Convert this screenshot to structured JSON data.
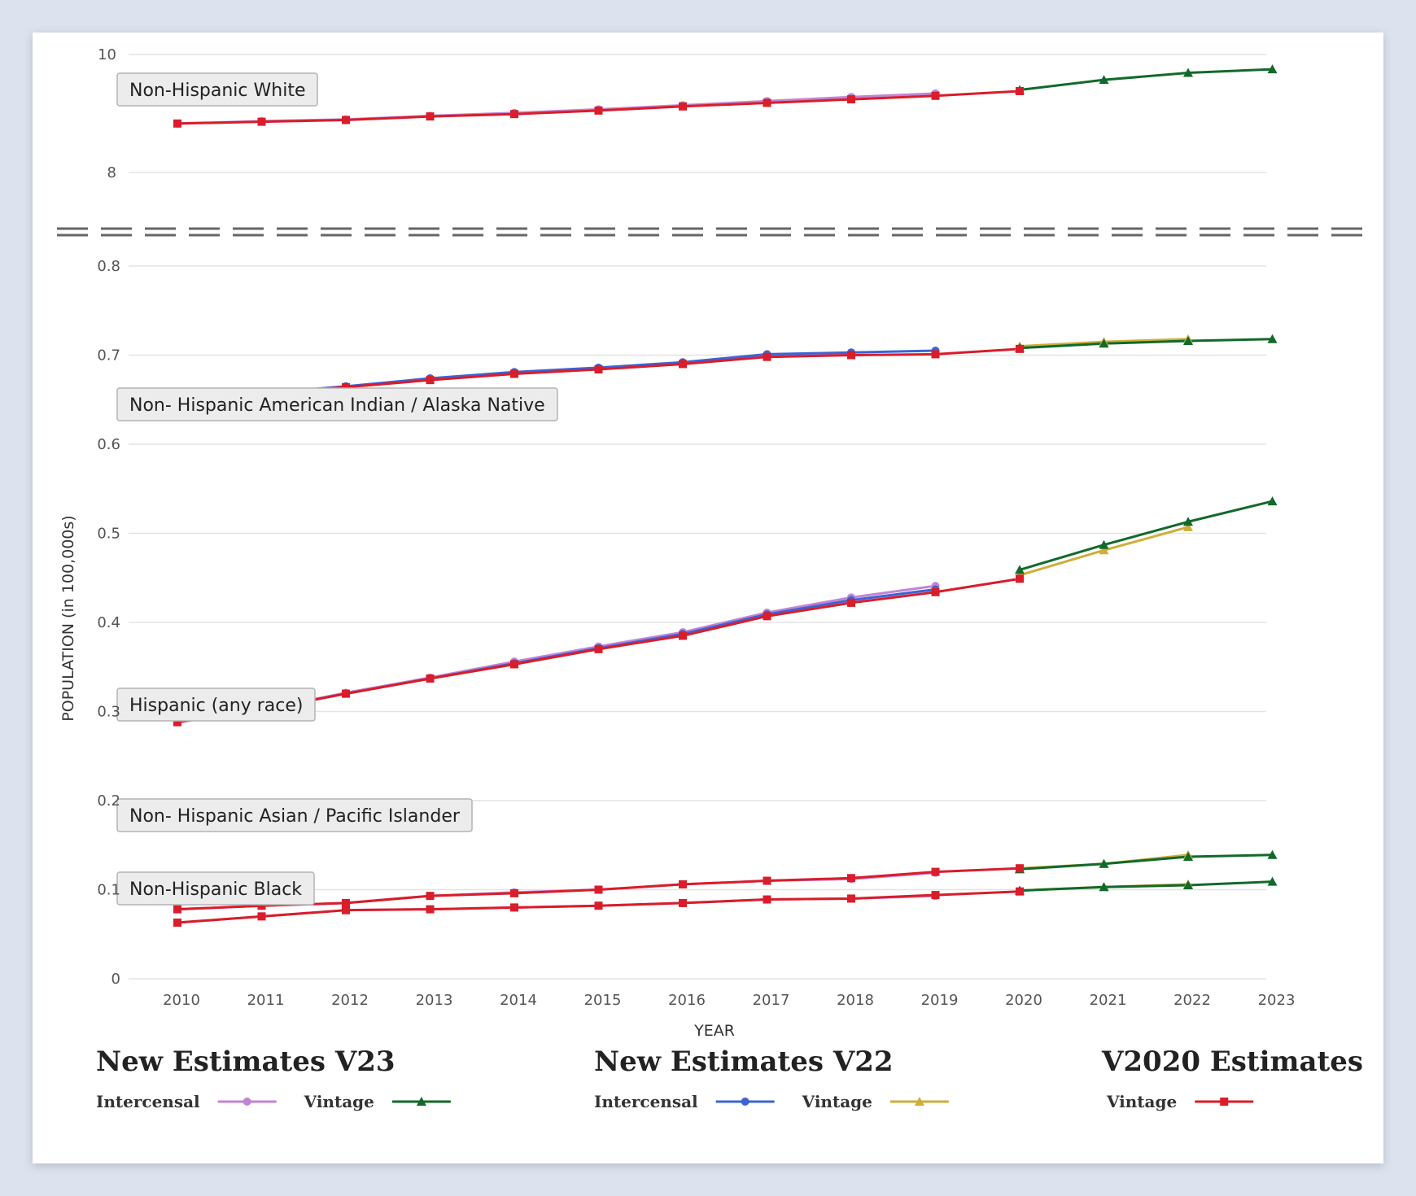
{
  "colors": {
    "v23_intercensal": "#c384d3",
    "v23_vintage": "#116a2a",
    "v22_intercensal": "#3c63d6",
    "v22_vintage": "#cfae3a",
    "v2020_vintage": "#d91d2a"
  },
  "chart_data": {
    "type": "line",
    "xlabel": "YEAR",
    "ylabel": "POPULATION (in 100,000s)",
    "x_ticks": [
      "2010",
      "2011",
      "2012",
      "2013",
      "2014",
      "2015",
      "2016",
      "2017",
      "2018",
      "2019",
      "2020",
      "2021",
      "2022",
      "2023"
    ],
    "broken_y_axis": true,
    "upper_panel": {
      "ylim": [
        8,
        10
      ],
      "yticks": [
        "10",
        "8"
      ]
    },
    "lower_panel": {
      "ylim": [
        0,
        0.8
      ],
      "yticks": [
        "0.8",
        "0.7",
        "0.6",
        "0.5",
        "0.4",
        "0.3",
        "0.2",
        "0.1",
        "0"
      ]
    },
    "group_labels": [
      "Non-Hispanic White",
      "Non- Hispanic American Indian / Alaska Native",
      "Hispanic (any race)",
      "Non- Hispanic Asian / Pacific Islander",
      "Non-Hispanic Black"
    ],
    "legend": {
      "v23": {
        "heading": "New Estimates V23",
        "items": [
          "Intercensal",
          "Vintage"
        ]
      },
      "v22": {
        "heading": "New Estimates V22",
        "items": [
          "Intercensal",
          "Vintage"
        ]
      },
      "v2020": {
        "heading": "V2020 Estimates",
        "items": [
          "Vintage"
        ]
      }
    },
    "series": [
      {
        "group": "Non-Hispanic White",
        "legend_key": "v2020_vintage",
        "panel": "upper",
        "marker": "square",
        "x": [
          2010,
          2011,
          2012,
          2013,
          2014,
          2015,
          2016,
          2017,
          2018,
          2019,
          2020
        ],
        "values": [
          8.83,
          8.86,
          8.89,
          8.95,
          8.99,
          9.05,
          9.12,
          9.18,
          9.24,
          9.3,
          9.38
        ]
      },
      {
        "group": "Non-Hispanic White",
        "legend_key": "v23_intercensal",
        "panel": "upper",
        "marker": "circle",
        "x": [
          2010,
          2011,
          2012,
          2013,
          2014,
          2015,
          2016,
          2017,
          2018,
          2019
        ],
        "values": [
          8.83,
          8.87,
          8.9,
          8.96,
          9.01,
          9.07,
          9.14,
          9.21,
          9.28,
          9.34
        ]
      },
      {
        "group": "Non-Hispanic White",
        "legend_key": "v23_vintage",
        "panel": "upper",
        "marker": "triangle",
        "x": [
          2020,
          2021,
          2022,
          2023
        ],
        "values": [
          9.4,
          9.57,
          9.69,
          9.75
        ]
      },
      {
        "group": "Non- Hispanic American Indian / Alaska Native",
        "legend_key": "v22_intercensal",
        "panel": "lower",
        "marker": "circle",
        "x": [
          2010,
          2011,
          2012,
          2013,
          2014,
          2015,
          2016,
          2017,
          2018,
          2019
        ],
        "values": [
          0.65,
          0.657,
          0.665,
          0.674,
          0.681,
          0.686,
          0.692,
          0.701,
          0.703,
          0.705
        ]
      },
      {
        "group": "Non- Hispanic American Indian / Alaska Native",
        "legend_key": "v2020_vintage",
        "panel": "lower",
        "marker": "square",
        "x": [
          2010,
          2011,
          2012,
          2013,
          2014,
          2015,
          2016,
          2017,
          2018,
          2019,
          2020
        ],
        "values": [
          0.65,
          0.657,
          0.664,
          0.672,
          0.679,
          0.684,
          0.69,
          0.698,
          0.7,
          0.701,
          0.707
        ]
      },
      {
        "group": "Non- Hispanic American Indian / Alaska Native",
        "legend_key": "v23_intercensal",
        "panel": "lower",
        "marker": "circle",
        "x": [
          2010,
          2011,
          2012,
          2013,
          2014,
          2015,
          2016,
          2017,
          2018
        ],
        "values": [
          0.65,
          0.657,
          0.665,
          0.673,
          0.68,
          0.685,
          0.691,
          0.699,
          0.701
        ]
      },
      {
        "group": "Non- Hispanic American Indian / Alaska Native",
        "legend_key": "v22_vintage",
        "panel": "lower",
        "marker": "triangle",
        "x": [
          2020,
          2021,
          2022
        ],
        "values": [
          0.71,
          0.715,
          0.718
        ]
      },
      {
        "group": "Non- Hispanic American Indian / Alaska Native",
        "legend_key": "v23_vintage",
        "panel": "lower",
        "marker": "triangle",
        "x": [
          2020,
          2021,
          2022,
          2023
        ],
        "values": [
          0.708,
          0.713,
          0.716,
          0.718
        ]
      },
      {
        "group": "Hispanic (any race)",
        "legend_key": "v2020_vintage",
        "panel": "lower",
        "marker": "square",
        "x": [
          2010,
          2011,
          2012,
          2013,
          2014,
          2015,
          2016,
          2017,
          2018,
          2019,
          2020
        ],
        "values": [
          0.288,
          0.302,
          0.32,
          0.337,
          0.353,
          0.37,
          0.385,
          0.407,
          0.422,
          0.434,
          0.449
        ]
      },
      {
        "group": "Hispanic (any race)",
        "legend_key": "v22_intercensal",
        "panel": "lower",
        "marker": "circle",
        "x": [
          2010,
          2011,
          2012,
          2013,
          2014,
          2015,
          2016,
          2017,
          2018,
          2019
        ],
        "values": [
          0.288,
          0.302,
          0.32,
          0.337,
          0.354,
          0.371,
          0.387,
          0.409,
          0.425,
          0.437
        ]
      },
      {
        "group": "Hispanic (any race)",
        "legend_key": "v23_intercensal",
        "panel": "lower",
        "marker": "circle",
        "x": [
          2010,
          2011,
          2012,
          2013,
          2014,
          2015,
          2016,
          2017,
          2018,
          2019
        ],
        "values": [
          0.288,
          0.302,
          0.321,
          0.338,
          0.356,
          0.373,
          0.389,
          0.411,
          0.428,
          0.441
        ]
      },
      {
        "group": "Hispanic (any race)",
        "legend_key": "v22_vintage",
        "panel": "lower",
        "marker": "triangle",
        "x": [
          2020,
          2021,
          2022
        ],
        "values": [
          0.453,
          0.481,
          0.507
        ]
      },
      {
        "group": "Hispanic (any race)",
        "legend_key": "v23_vintage",
        "panel": "lower",
        "marker": "triangle",
        "x": [
          2020,
          2021,
          2022,
          2023
        ],
        "values": [
          0.459,
          0.487,
          0.513,
          0.536
        ]
      },
      {
        "group": "Non- Hispanic Asian / Pacific Islander",
        "legend_key": "v2020_vintage",
        "panel": "lower",
        "marker": "square",
        "x": [
          2010,
          2011,
          2012,
          2013,
          2014,
          2015,
          2016,
          2017,
          2018,
          2019,
          2020
        ],
        "values": [
          0.078,
          0.082,
          0.085,
          0.093,
          0.096,
          0.1,
          0.106,
          0.11,
          0.113,
          0.12,
          0.124
        ]
      },
      {
        "group": "Non- Hispanic Asian / Pacific Islander",
        "legend_key": "v23_intercensal",
        "panel": "lower",
        "marker": "circle",
        "x": [
          2010,
          2011,
          2012,
          2013,
          2014,
          2015,
          2016,
          2017,
          2018,
          2019
        ],
        "values": [
          0.078,
          0.082,
          0.085,
          0.093,
          0.097,
          0.1,
          0.106,
          0.11,
          0.112,
          0.119
        ]
      },
      {
        "group": "Non- Hispanic Asian / Pacific Islander",
        "legend_key": "v22_vintage",
        "panel": "lower",
        "marker": "triangle",
        "x": [
          2020,
          2021,
          2022
        ],
        "values": [
          0.124,
          0.129,
          0.139
        ]
      },
      {
        "group": "Non- Hispanic Asian / Pacific Islander",
        "legend_key": "v23_vintage",
        "panel": "lower",
        "marker": "triangle",
        "x": [
          2020,
          2021,
          2022,
          2023
        ],
        "values": [
          0.123,
          0.129,
          0.137,
          0.139
        ]
      },
      {
        "group": "Non-Hispanic Black",
        "legend_key": "v2020_vintage",
        "panel": "lower",
        "marker": "square",
        "x": [
          2010,
          2011,
          2012,
          2013,
          2014,
          2015,
          2016,
          2017,
          2018,
          2019,
          2020
        ],
        "values": [
          0.063,
          0.07,
          0.077,
          0.078,
          0.08,
          0.082,
          0.085,
          0.089,
          0.09,
          0.094,
          0.098
        ]
      },
      {
        "group": "Non-Hispanic Black",
        "legend_key": "v23_intercensal",
        "panel": "lower",
        "marker": "circle",
        "x": [
          2010,
          2011,
          2012,
          2013,
          2014,
          2015,
          2016,
          2017,
          2018,
          2019
        ],
        "values": [
          0.063,
          0.07,
          0.077,
          0.078,
          0.08,
          0.082,
          0.085,
          0.089,
          0.09,
          0.093
        ]
      },
      {
        "group": "Non-Hispanic Black",
        "legend_key": "v22_vintage",
        "panel": "lower",
        "marker": "triangle",
        "x": [
          2020,
          2021,
          2022
        ],
        "values": [
          0.099,
          0.103,
          0.106
        ]
      },
      {
        "group": "Non-Hispanic Black",
        "legend_key": "v23_vintage",
        "panel": "lower",
        "marker": "triangle",
        "x": [
          2020,
          2021,
          2022,
          2023
        ],
        "values": [
          0.099,
          0.103,
          0.105,
          0.109
        ]
      }
    ]
  }
}
